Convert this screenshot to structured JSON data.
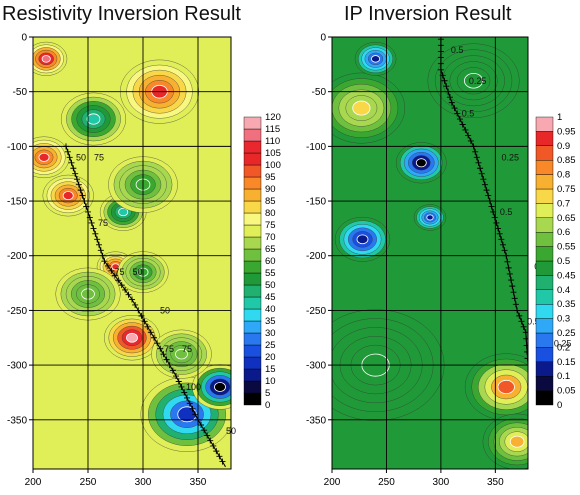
{
  "chart_data": [
    {
      "type": "heatmap",
      "title": "Resistivity Inversion Result",
      "xlim": [
        200,
        380
      ],
      "ylim": [
        -395,
        0
      ],
      "x_ticks": [
        200,
        250,
        300,
        350
      ],
      "y_ticks": [
        0,
        -50,
        -100,
        -150,
        -200,
        -250,
        -300,
        -350
      ],
      "grid": true,
      "legend_placement": "right",
      "colorbar_levels": [
        0,
        5,
        10,
        15,
        20,
        25,
        30,
        35,
        40,
        45,
        50,
        55,
        60,
        65,
        70,
        75,
        80,
        85,
        90,
        95,
        100,
        105,
        110,
        115,
        120
      ],
      "colorbar_colors": [
        "#000000",
        "#0a0a40",
        "#0a1a8a",
        "#1030c0",
        "#1a50e0",
        "#2a78f0",
        "#30a8f8",
        "#30d8f0",
        "#20c8a8",
        "#20b070",
        "#209a38",
        "#3aa830",
        "#70c040",
        "#a8d850",
        "#e0ee58",
        "#f8f880",
        "#f8d848",
        "#f8b030",
        "#f88828",
        "#f05828",
        "#e82828",
        "#e8282e",
        "#f07080",
        "#f8a8b0",
        "#ffffff"
      ],
      "contour_labels": [
        "50",
        "75",
        "75",
        "50",
        "75",
        "50",
        "75",
        "75",
        "100",
        "50"
      ],
      "borehole_path": [
        [
          230,
          -100
        ],
        [
          250,
          -160
        ],
        [
          265,
          -205
        ],
        [
          290,
          -240
        ],
        [
          310,
          -275
        ],
        [
          330,
          -310
        ],
        [
          350,
          -350
        ],
        [
          375,
          -393
        ]
      ],
      "blobs": [
        {
          "x": 212,
          "y": -20,
          "v": 110,
          "r": 18
        },
        {
          "x": 255,
          "y": -75,
          "v": 40,
          "r": 28
        },
        {
          "x": 315,
          "y": -50,
          "v": 100,
          "r": 34
        },
        {
          "x": 210,
          "y": -110,
          "v": 100,
          "r": 22
        },
        {
          "x": 232,
          "y": -145,
          "v": 100,
          "r": 22
        },
        {
          "x": 282,
          "y": -160,
          "v": 40,
          "r": 20
        },
        {
          "x": 300,
          "y": -135,
          "v": 55,
          "r": 30
        },
        {
          "x": 275,
          "y": -210,
          "v": 100,
          "r": 16
        },
        {
          "x": 300,
          "y": -215,
          "v": 55,
          "r": 22
        },
        {
          "x": 250,
          "y": -235,
          "v": 60,
          "r": 28
        },
        {
          "x": 290,
          "y": -275,
          "v": 115,
          "r": 24
        },
        {
          "x": 340,
          "y": -345,
          "v": 15,
          "r": 40
        },
        {
          "x": 370,
          "y": -320,
          "v": 0,
          "r": 24
        },
        {
          "x": 335,
          "y": -290,
          "v": 60,
          "r": 26
        }
      ],
      "background_value": 72
    },
    {
      "type": "heatmap",
      "title": "IP Inversion Result",
      "xlim": [
        200,
        380
      ],
      "ylim": [
        -395,
        0
      ],
      "x_ticks": [
        200,
        250,
        300,
        350
      ],
      "y_ticks": [
        0,
        -50,
        -100,
        -150,
        -200,
        -250,
        -300,
        -350
      ],
      "grid": true,
      "legend_placement": "right",
      "colorbar_levels": [
        0,
        0.05,
        0.1,
        0.15,
        0.2,
        0.25,
        0.3,
        0.35,
        0.4,
        0.45,
        0.5,
        0.55,
        0.6,
        0.65,
        0.7,
        0.75,
        0.8,
        0.85,
        0.9,
        0.95,
        1
      ],
      "colorbar_colors": [
        "#000000",
        "#0a0a40",
        "#0a1a8a",
        "#1a50e0",
        "#2a78f0",
        "#30a8f8",
        "#30d8f0",
        "#20c8a8",
        "#20b070",
        "#209a38",
        "#3aa830",
        "#70c040",
        "#a8d850",
        "#e0ee58",
        "#f8d848",
        "#f8b030",
        "#f88828",
        "#f05828",
        "#e82828",
        "#f8a8b0",
        "#ffffff"
      ],
      "contour_labels": [
        "0.5",
        "0.25",
        "0.5",
        "0.25",
        "0.5",
        "0.25",
        "0.5",
        "0.25"
      ],
      "borehole_path": [
        [
          300,
          -2
        ],
        [
          300,
          -30
        ],
        [
          310,
          -60
        ],
        [
          330,
          -100
        ],
        [
          345,
          -150
        ],
        [
          360,
          -200
        ],
        [
          370,
          -250
        ],
        [
          378,
          -270
        ],
        [
          380,
          -300
        ]
      ],
      "blobs": [
        {
          "x": 227,
          "y": -65,
          "v": 0.7,
          "r": 38
        },
        {
          "x": 240,
          "y": -20,
          "v": 0.15,
          "r": 18
        },
        {
          "x": 282,
          "y": -115,
          "v": 0.05,
          "r": 22
        },
        {
          "x": 290,
          "y": -165,
          "v": 0.15,
          "r": 14
        },
        {
          "x": 228,
          "y": -185,
          "v": 0.1,
          "r": 24
        },
        {
          "x": 330,
          "y": -40,
          "v": 0.45,
          "r": 40
        },
        {
          "x": 360,
          "y": -320,
          "v": 0.85,
          "r": 36
        },
        {
          "x": 370,
          "y": -370,
          "v": 0.75,
          "r": 30
        },
        {
          "x": 240,
          "y": -300,
          "v": 0.45,
          "r": 60
        }
      ],
      "background_value": 0.45
    }
  ]
}
